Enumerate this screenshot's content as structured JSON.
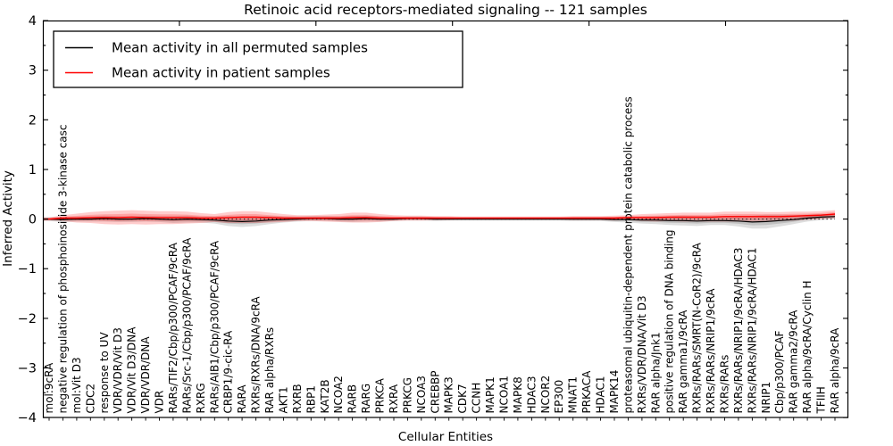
{
  "chart_data": {
    "type": "line",
    "title": "Retinoic acid receptors-mediated signaling -- 121 samples",
    "xlabel": "Cellular Entities",
    "ylabel": "Inferred Activity",
    "ylim": [
      -4,
      4
    ],
    "ytick_values": [
      -4,
      -3,
      -2,
      -1,
      0,
      1,
      2,
      3,
      4
    ],
    "grid": false,
    "legend_position": "upper left",
    "zero_reference_line": "dotted",
    "categories": [
      "mol:9cRA",
      "negative regulation of phosphoinositide 3-kinase casc",
      "mol:Vit D3",
      "CDC2",
      "response to UV",
      "VDR/VDR/Vit D3",
      "VDR/Vit D3/DNA",
      "VDR/VDR/DNA",
      "VDR",
      "RARs/TIF2/Cbp/p300/PCAF/9cRA",
      "RARs/Src-1/Cbp/p300/PCAF/9cRA",
      "RXRG",
      "RARs/AIB1/Cbp/p300/PCAF/9cRA",
      "CRBP1/9-cic-RA",
      "RARA",
      "RXRs/RXRs/DNA/9cRA",
      "RAR alpha/RXRs",
      "AKT1",
      "RXRB",
      "RBP1",
      "KAT2B",
      "NCOA2",
      "RARB",
      "RARG",
      "PRKCA",
      "RXRA",
      "PRKCG",
      "NCOA3",
      "CREBBP",
      "MAPK3",
      "CDK7",
      "CCNH",
      "MAPK1",
      "NCOA1",
      "MAPK8",
      "HDAC3",
      "NCOR2",
      "EP300",
      "MNAT1",
      "PRKACA",
      "HDAC1",
      "MAPK14",
      "proteasomal ubiquitin-dependent protein catabolic process",
      "RXRs/VDR/DNA/Vit D3",
      "RAR alpha/Jnk1",
      "positive regulation of DNA binding",
      "RAR gamma1/9cRA",
      "RXRs/RARs/SMRT(N-CoR2)/9cRA",
      "RXRs/RARs/NRIP1/9cRA",
      "RXRs/RARs",
      "RXRs/RARs/NRIP1/9cRA/HDAC3",
      "RXRs/RARs/NRIP1/9cRA/HDAC1",
      "NRIP1",
      "Cbp/p300/PCAF",
      "RAR gamma2/9cRA",
      "RAR alpha/9cRA/Cyclin H",
      "TFIIH",
      "RAR alpha/9cRA"
    ],
    "series": [
      {
        "name": "Mean activity in all permuted samples",
        "color": "#000000",
        "band_color": "rgba(0,0,0,0.13)",
        "mean": [
          0.0,
          -0.01,
          0.0,
          0.0,
          0.01,
          0.0,
          0.0,
          0.01,
          0.0,
          -0.01,
          0.0,
          -0.01,
          -0.02,
          -0.04,
          -0.05,
          -0.04,
          -0.02,
          -0.01,
          0.0,
          0.01,
          0.01,
          0.0,
          0.0,
          0.01,
          0.0,
          0.0,
          0.01,
          0.01,
          0.0,
          0.0,
          0.0,
          0.0,
          0.0,
          0.0,
          0.0,
          0.0,
          0.0,
          0.0,
          0.0,
          0.0,
          0.0,
          -0.01,
          -0.01,
          -0.02,
          -0.02,
          -0.03,
          -0.03,
          -0.04,
          -0.03,
          -0.03,
          -0.04,
          -0.06,
          -0.05,
          -0.03,
          -0.01,
          0.02,
          0.04,
          0.05
        ],
        "std": [
          0.04,
          0.05,
          0.05,
          0.05,
          0.06,
          0.06,
          0.06,
          0.06,
          0.06,
          0.07,
          0.07,
          0.06,
          0.07,
          0.1,
          0.11,
          0.1,
          0.08,
          0.06,
          0.05,
          0.05,
          0.05,
          0.05,
          0.06,
          0.06,
          0.05,
          0.04,
          0.04,
          0.04,
          0.04,
          0.03,
          0.03,
          0.03,
          0.03,
          0.03,
          0.03,
          0.03,
          0.03,
          0.03,
          0.04,
          0.04,
          0.04,
          0.05,
          0.06,
          0.07,
          0.08,
          0.09,
          0.1,
          0.1,
          0.09,
          0.09,
          0.11,
          0.13,
          0.14,
          0.12,
          0.09,
          0.07,
          0.06,
          0.05
        ]
      },
      {
        "name": "Mean activity in patient samples",
        "color": "#ff0000",
        "band_color": "rgba(255,0,0,0.20)",
        "mean": [
          0.0,
          0.02,
          0.02,
          0.03,
          0.03,
          0.03,
          0.04,
          0.03,
          0.03,
          0.03,
          0.03,
          0.02,
          0.02,
          0.03,
          0.04,
          0.04,
          0.03,
          0.02,
          0.02,
          0.02,
          0.02,
          0.02,
          0.03,
          0.03,
          0.02,
          0.02,
          0.02,
          0.02,
          0.02,
          0.02,
          0.02,
          0.02,
          0.02,
          0.02,
          0.02,
          0.02,
          0.02,
          0.02,
          0.02,
          0.02,
          0.02,
          0.02,
          0.03,
          0.03,
          0.03,
          0.04,
          0.04,
          0.04,
          0.04,
          0.05,
          0.05,
          0.05,
          0.05,
          0.05,
          0.06,
          0.07,
          0.08,
          0.1
        ],
        "std": [
          0.03,
          0.06,
          0.09,
          0.11,
          0.13,
          0.14,
          0.14,
          0.14,
          0.13,
          0.13,
          0.12,
          0.1,
          0.08,
          0.11,
          0.12,
          0.12,
          0.1,
          0.08,
          0.06,
          0.06,
          0.07,
          0.08,
          0.1,
          0.1,
          0.08,
          0.06,
          0.05,
          0.05,
          0.04,
          0.04,
          0.03,
          0.03,
          0.03,
          0.03,
          0.03,
          0.03,
          0.03,
          0.03,
          0.04,
          0.04,
          0.04,
          0.05,
          0.05,
          0.07,
          0.08,
          0.08,
          0.09,
          0.09,
          0.09,
          0.1,
          0.1,
          0.1,
          0.09,
          0.09,
          0.09,
          0.08,
          0.08,
          0.08
        ]
      }
    ]
  }
}
